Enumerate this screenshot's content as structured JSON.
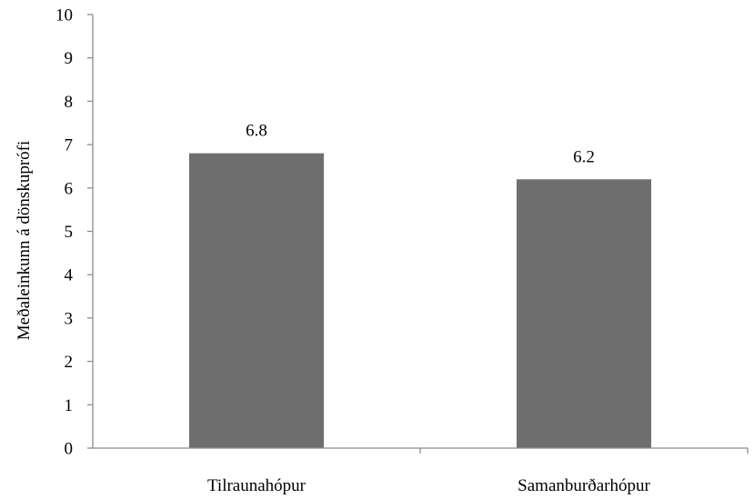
{
  "chart_data": {
    "type": "bar",
    "title": "",
    "xlabel": "",
    "ylabel": "Meðaleinkunn á dönskuprófi",
    "categories": [
      "Tilraunahópur",
      "Samanburðarhópur"
    ],
    "values": [
      6.8,
      6.2
    ],
    "data_labels": [
      "6.8",
      "6.2"
    ],
    "ylim": [
      0,
      10
    ],
    "yticks": [
      0,
      1,
      2,
      3,
      4,
      5,
      6,
      7,
      8,
      9,
      10
    ],
    "grid": false,
    "legend": "none",
    "bar_color": "#6e6e6e",
    "axis_color": "#8c8c8c"
  }
}
